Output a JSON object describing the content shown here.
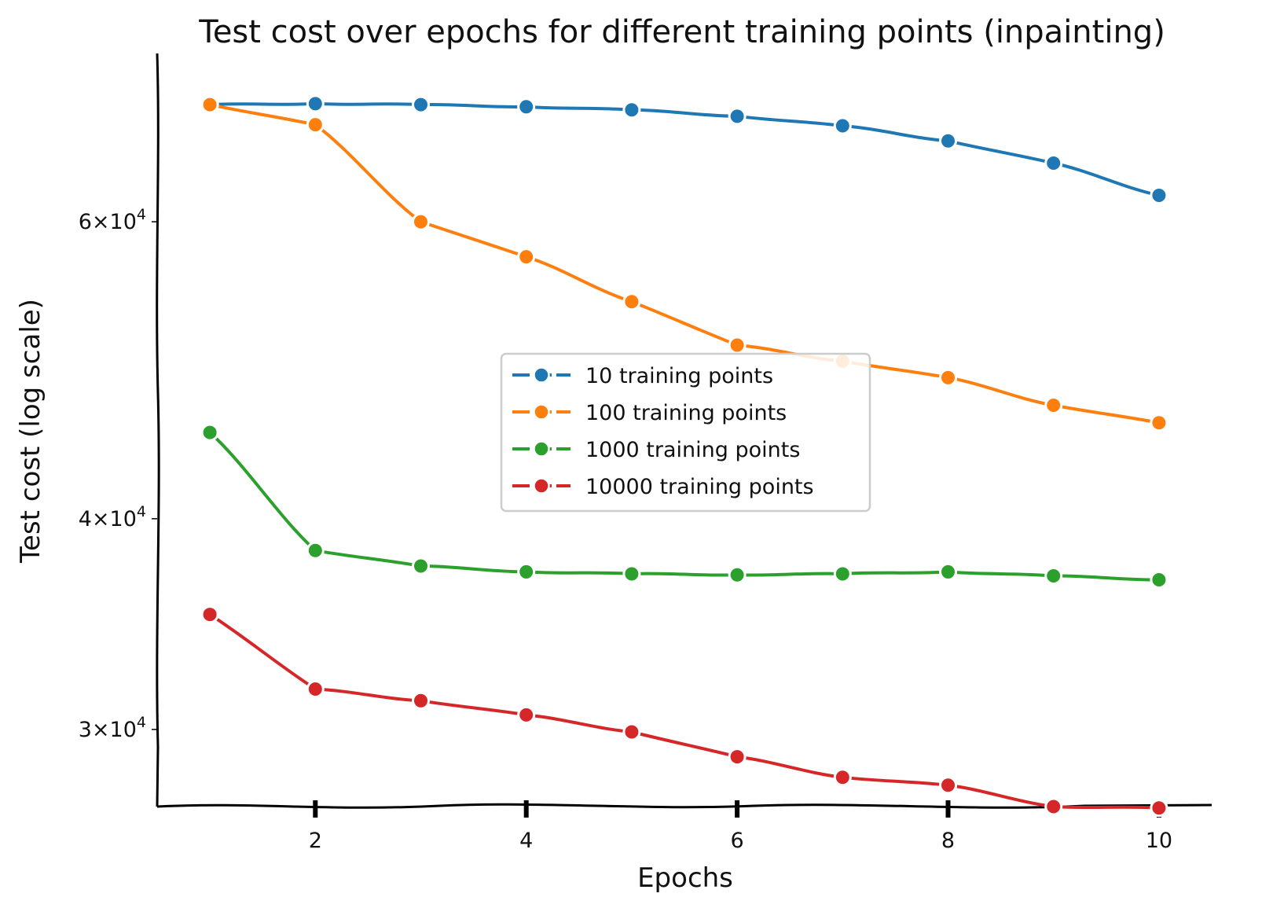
{
  "chart_data": {
    "type": "line",
    "title": "Test cost over epochs for different training points (inpainting)",
    "xlabel": "Epochs",
    "ylabel": "Test cost (log scale)",
    "yscale": "log",
    "xlim": [
      0.5,
      10.5
    ],
    "ylim": [
      27000,
      75500
    ],
    "x": [
      1,
      2,
      3,
      4,
      5,
      6,
      7,
      8,
      9,
      10
    ],
    "x_ticks": [
      {
        "value": 2,
        "label": "2"
      },
      {
        "value": 4,
        "label": "4"
      },
      {
        "value": 6,
        "label": "6"
      },
      {
        "value": 8,
        "label": "8"
      },
      {
        "value": 10,
        "label": "10"
      }
    ],
    "y_ticks": [
      {
        "value": 30000,
        "mantissa": "3",
        "exp": "4"
      },
      {
        "value": 40000,
        "mantissa": "4",
        "exp": "4"
      },
      {
        "value": 60000,
        "mantissa": "6",
        "exp": "4"
      }
    ],
    "legend_position": "center",
    "grid": false,
    "series": [
      {
        "name": "10 training points",
        "color": "#1f77b4",
        "values": [
          70400,
          70500,
          70400,
          70200,
          69900,
          69300,
          68400,
          67000,
          65000,
          62200
        ]
      },
      {
        "name": "100 training points",
        "color": "#ff7f0e",
        "values": [
          70400,
          68500,
          60000,
          57200,
          53800,
          50700,
          49600,
          48500,
          46700,
          45600
        ]
      },
      {
        "name": "1000 training points",
        "color": "#2ca02c",
        "values": [
          45000,
          38300,
          37500,
          37200,
          37100,
          37050,
          37100,
          37200,
          37000,
          36800
        ]
      },
      {
        "name": "10000 training points",
        "color": "#d62728",
        "values": [
          35100,
          31700,
          31200,
          30600,
          29900,
          28900,
          28100,
          27800,
          27000,
          26950
        ]
      }
    ]
  }
}
